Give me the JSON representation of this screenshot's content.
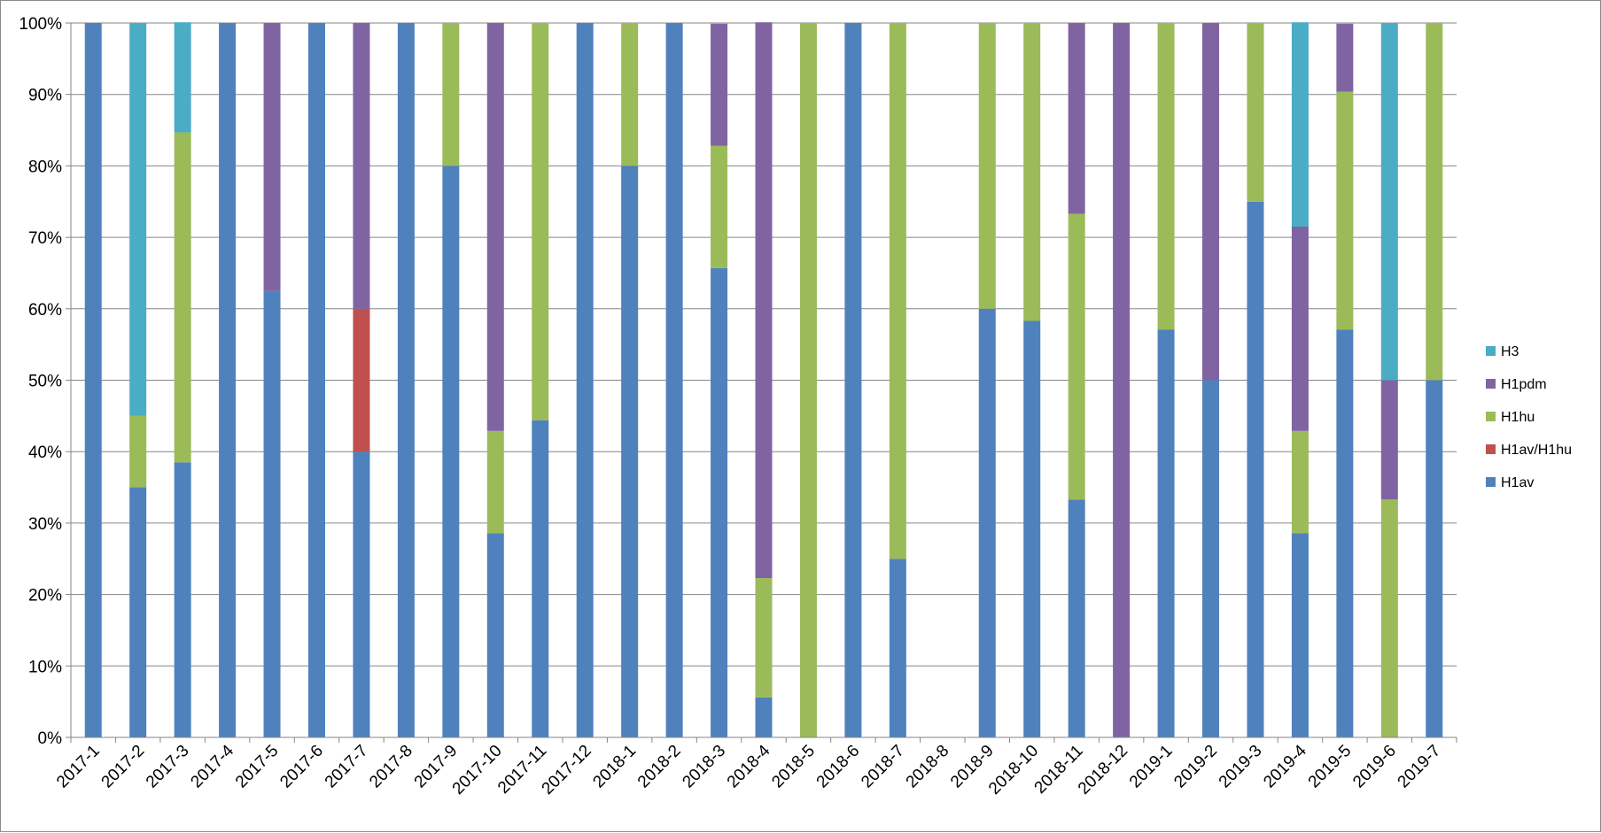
{
  "chart_data": {
    "type": "bar",
    "stacked": true,
    "normalized": true,
    "title": "",
    "xlabel": "",
    "ylabel": "",
    "ylim": [
      0,
      100
    ],
    "y_ticks": [
      "0%",
      "10%",
      "20%",
      "30%",
      "40%",
      "50%",
      "60%",
      "70%",
      "80%",
      "90%",
      "100%"
    ],
    "grid": "horizontal",
    "legend_position": "right",
    "categories": [
      "2017-1",
      "2017-2",
      "2017-3",
      "2017-4",
      "2017-5",
      "2017-6",
      "2017-7",
      "2017-8",
      "2017-9",
      "2017-10",
      "2017-11",
      "2017-12",
      "2018-1",
      "2018-2",
      "2018-3",
      "2018-4",
      "2018-5",
      "2018-6",
      "2018-7",
      "2018-8",
      "2018-9",
      "2018-10",
      "2018-11",
      "2018-12",
      "2019-1",
      "2019-2",
      "2019-3",
      "2019-4",
      "2019-5",
      "2019-6",
      "2019-7"
    ],
    "series": [
      {
        "name": "H1av",
        "color": "#4f81bd",
        "values": [
          100,
          35,
          38.5,
          100,
          62.5,
          100,
          40,
          100,
          80,
          28.6,
          44.4,
          100,
          80,
          100,
          65.7,
          5.6,
          0,
          100,
          25,
          0,
          60,
          58.3,
          33.3,
          0,
          57.1,
          50,
          75,
          28.6,
          57.1,
          0,
          50
        ]
      },
      {
        "name": "H1av/H1hu",
        "color": "#c0504d",
        "values": [
          0,
          0,
          0,
          0,
          0,
          0,
          20,
          0,
          0,
          0,
          0,
          0,
          0,
          0,
          0,
          0,
          0,
          0,
          0,
          0,
          0,
          0,
          0,
          0,
          0,
          0,
          0,
          0,
          0,
          0,
          0
        ]
      },
      {
        "name": "H1hu",
        "color": "#9bbb59",
        "values": [
          0,
          10,
          46.2,
          0,
          0,
          0,
          0,
          0,
          20,
          14.3,
          55.6,
          0,
          20,
          0,
          17.1,
          16.7,
          100,
          0,
          75,
          0,
          40,
          41.7,
          40,
          0,
          42.9,
          0,
          25,
          14.3,
          33.3,
          33.3,
          50
        ]
      },
      {
        "name": "H1pdm",
        "color": "#8064a2",
        "values": [
          0,
          0,
          0,
          0,
          37.5,
          0,
          40,
          0,
          0,
          57.1,
          0,
          0,
          0,
          0,
          17.1,
          77.8,
          0,
          0,
          0,
          0,
          0,
          0,
          26.7,
          100,
          0,
          50,
          0,
          28.6,
          9.5,
          16.7,
          0
        ]
      },
      {
        "name": "H3",
        "color": "#4bacc6",
        "values": [
          0,
          55,
          15.4,
          0,
          0,
          0,
          0,
          0,
          0,
          0,
          0,
          0,
          0,
          0,
          0,
          0,
          0,
          0,
          0,
          0,
          0,
          0,
          0,
          0,
          0,
          0,
          0,
          28.6,
          0,
          50,
          0
        ]
      }
    ],
    "legend_order": [
      "H3",
      "H1pdm",
      "H1hu",
      "H1av/H1hu",
      "H1av"
    ]
  }
}
